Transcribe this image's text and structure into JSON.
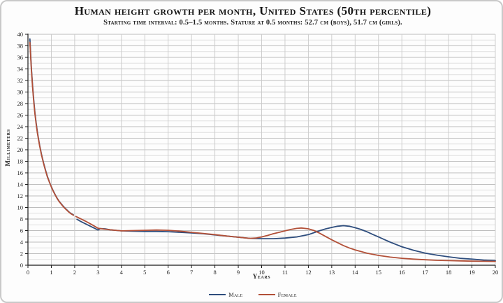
{
  "header": {
    "title": "Human height growth per month, United States (50th percentile)",
    "subtitle": "Starting time interval: 0.5–1.5 months. Stature at 0.5 months: 52.7 cm (boys), 51.7 cm (girls)."
  },
  "axes": {
    "x_title": "Years",
    "y_title": "Millimeters"
  },
  "colors": {
    "male_line": "#2e4d7d",
    "female_line": "#b25038",
    "grid_major_h": "#bdbdbd",
    "grid_minor_h": "#e0e0e0",
    "grid_vertical": "#c9c9c9",
    "axis": "#1a1a1a"
  },
  "chart_data": {
    "type": "line",
    "title": "Human height growth per month, United States (50th percentile)",
    "subtitle": "Starting time interval: 0.5–1.5 months. Stature at 0.5 months: 52.7 cm (boys), 51.7 cm (girls).",
    "xlabel": "Years",
    "ylabel": "Millimeters",
    "xlim": [
      0,
      20
    ],
    "ylim": [
      0,
      40
    ],
    "x_tick_step": 1,
    "y_label_step": 2,
    "y_grid_step": 1,
    "grid": true,
    "legend_position": "bottom",
    "note": "Growth velocity in mm/month vs age in years; visible gap in both series near age 2",
    "series": [
      {
        "name": "Male",
        "color_key": "male_line",
        "segments": [
          [
            [
              0.083,
              39.2
            ],
            [
              0.1,
              38.0
            ],
            [
              0.125,
              35.8
            ],
            [
              0.15,
              34.0
            ],
            [
              0.175,
              32.4
            ],
            [
              0.2,
              31.0
            ],
            [
              0.25,
              28.5
            ],
            [
              0.3,
              26.4
            ],
            [
              0.35,
              24.7
            ],
            [
              0.4,
              23.2
            ],
            [
              0.45,
              21.9
            ],
            [
              0.5,
              20.8
            ],
            [
              0.58,
              19.2
            ],
            [
              0.67,
              17.7
            ],
            [
              0.75,
              16.5
            ],
            [
              0.83,
              15.4
            ],
            [
              0.92,
              14.4
            ],
            [
              1.0,
              13.6
            ],
            [
              1.08,
              12.9
            ],
            [
              1.17,
              12.2
            ],
            [
              1.25,
              11.6
            ],
            [
              1.33,
              11.1
            ],
            [
              1.42,
              10.65
            ],
            [
              1.5,
              10.25
            ],
            [
              1.58,
              9.9
            ],
            [
              1.67,
              9.55
            ],
            [
              1.75,
              9.25
            ],
            [
              1.83,
              9.0
            ],
            [
              1.95,
              8.7
            ]
          ],
          [
            [
              2.1,
              7.95
            ],
            [
              2.25,
              7.6
            ],
            [
              2.5,
              7.1
            ],
            [
              2.75,
              6.6
            ],
            [
              3.0,
              6.1
            ],
            [
              3.1,
              6.35
            ],
            [
              3.3,
              6.3
            ],
            [
              3.5,
              6.15
            ],
            [
              3.75,
              6.05
            ],
            [
              4.0,
              5.95
            ],
            [
              4.5,
              5.9
            ],
            [
              5.0,
              5.85
            ],
            [
              5.5,
              5.85
            ],
            [
              6.0,
              5.8
            ],
            [
              6.5,
              5.7
            ],
            [
              7.0,
              5.6
            ],
            [
              7.5,
              5.45
            ],
            [
              8.0,
              5.25
            ],
            [
              8.5,
              5.05
            ],
            [
              9.0,
              4.85
            ],
            [
              9.5,
              4.65
            ],
            [
              10.0,
              4.6
            ],
            [
              10.5,
              4.6
            ],
            [
              11.0,
              4.7
            ],
            [
              11.5,
              4.9
            ],
            [
              12.0,
              5.3
            ],
            [
              12.25,
              5.65
            ],
            [
              12.5,
              6.0
            ],
            [
              12.75,
              6.3
            ],
            [
              13.0,
              6.55
            ],
            [
              13.25,
              6.75
            ],
            [
              13.5,
              6.85
            ],
            [
              13.75,
              6.75
            ],
            [
              14.0,
              6.5
            ],
            [
              14.25,
              6.2
            ],
            [
              14.5,
              5.8
            ],
            [
              14.75,
              5.35
            ],
            [
              15.0,
              4.9
            ],
            [
              15.25,
              4.45
            ],
            [
              15.5,
              4.0
            ],
            [
              15.75,
              3.6
            ],
            [
              16.0,
              3.2
            ],
            [
              16.5,
              2.6
            ],
            [
              17.0,
              2.1
            ],
            [
              17.5,
              1.75
            ],
            [
              18.0,
              1.45
            ],
            [
              18.5,
              1.2
            ],
            [
              19.0,
              1.05
            ],
            [
              19.5,
              0.9
            ],
            [
              20.0,
              0.8
            ]
          ]
        ]
      },
      {
        "name": "Female",
        "color_key": "female_line",
        "segments": [
          [
            [
              0.083,
              38.6
            ],
            [
              0.1,
              37.5
            ],
            [
              0.125,
              35.4
            ],
            [
              0.15,
              33.7
            ],
            [
              0.175,
              32.1
            ],
            [
              0.2,
              30.7
            ],
            [
              0.25,
              28.2
            ],
            [
              0.3,
              26.2
            ],
            [
              0.35,
              24.5
            ],
            [
              0.4,
              23.0
            ],
            [
              0.45,
              21.8
            ],
            [
              0.5,
              20.7
            ],
            [
              0.58,
              19.1
            ],
            [
              0.67,
              17.6
            ],
            [
              0.75,
              16.4
            ],
            [
              0.83,
              15.3
            ],
            [
              0.92,
              14.35
            ],
            [
              1.0,
              13.55
            ],
            [
              1.08,
              12.85
            ],
            [
              1.17,
              12.15
            ],
            [
              1.25,
              11.55
            ],
            [
              1.33,
              11.05
            ],
            [
              1.42,
              10.6
            ],
            [
              1.5,
              10.2
            ],
            [
              1.58,
              9.85
            ],
            [
              1.67,
              9.5
            ],
            [
              1.75,
              9.2
            ],
            [
              1.83,
              8.95
            ],
            [
              1.95,
              8.65
            ]
          ],
          [
            [
              2.05,
              8.45
            ],
            [
              2.25,
              8.05
            ],
            [
              2.5,
              7.55
            ],
            [
              2.75,
              7.0
            ],
            [
              3.0,
              6.4
            ],
            [
              3.25,
              6.25
            ],
            [
              3.5,
              6.15
            ],
            [
              3.75,
              6.05
            ],
            [
              4.0,
              5.95
            ],
            [
              4.5,
              6.0
            ],
            [
              5.0,
              6.05
            ],
            [
              5.5,
              6.1
            ],
            [
              6.0,
              6.05
            ],
            [
              6.5,
              5.9
            ],
            [
              7.0,
              5.7
            ],
            [
              7.5,
              5.5
            ],
            [
              8.0,
              5.3
            ],
            [
              8.5,
              5.05
            ],
            [
              9.0,
              4.85
            ],
            [
              9.5,
              4.65
            ],
            [
              9.75,
              4.7
            ],
            [
              10.0,
              4.9
            ],
            [
              10.25,
              5.15
            ],
            [
              10.5,
              5.45
            ],
            [
              10.75,
              5.7
            ],
            [
              11.0,
              5.95
            ],
            [
              11.25,
              6.2
            ],
            [
              11.5,
              6.38
            ],
            [
              11.7,
              6.45
            ],
            [
              12.0,
              6.3
            ],
            [
              12.25,
              6.0
            ],
            [
              12.5,
              5.5
            ],
            [
              12.75,
              4.95
            ],
            [
              13.0,
              4.4
            ],
            [
              13.25,
              3.9
            ],
            [
              13.5,
              3.4
            ],
            [
              13.75,
              3.0
            ],
            [
              14.0,
              2.65
            ],
            [
              14.5,
              2.1
            ],
            [
              15.0,
              1.7
            ],
            [
              15.5,
              1.4
            ],
            [
              16.0,
              1.2
            ],
            [
              16.5,
              1.05
            ],
            [
              17.0,
              0.95
            ],
            [
              17.5,
              0.85
            ],
            [
              18.0,
              0.8
            ],
            [
              18.5,
              0.75
            ],
            [
              19.0,
              0.7
            ],
            [
              19.5,
              0.68
            ],
            [
              20.0,
              0.65
            ]
          ]
        ]
      }
    ]
  }
}
